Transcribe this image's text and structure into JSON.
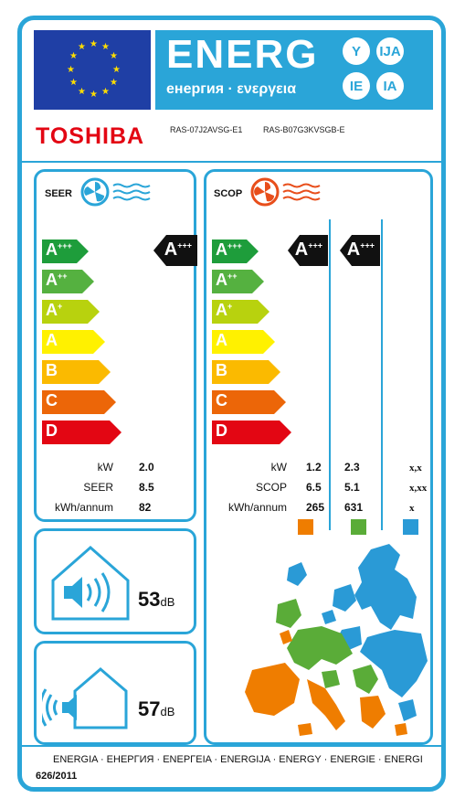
{
  "header": {
    "energ_word": "ENERG",
    "energ_subtitle": "енергия · ενεργεια",
    "lang_codes": [
      "Y",
      "IJA",
      "IE",
      "IA"
    ],
    "brand": "TOSHIBA",
    "model_indoor": "RAS-07J2AVSG-E1",
    "model_outdoor": "RAS-B07G3KVSGB-E"
  },
  "scale_classes": [
    {
      "base": "A",
      "sup": "+++",
      "color": "#1e9d3b"
    },
    {
      "base": "A",
      "sup": "++",
      "color": "#55b140"
    },
    {
      "base": "A",
      "sup": "+",
      "color": "#b8d20e"
    },
    {
      "base": "A",
      "sup": "",
      "color": "#fff100"
    },
    {
      "base": "B",
      "sup": "",
      "color": "#fbba00"
    },
    {
      "base": "C",
      "sup": "",
      "color": "#ec6608"
    },
    {
      "base": "D",
      "sup": "",
      "color": "#e30613"
    }
  ],
  "seer": {
    "title": "SEER",
    "icon": "fan-cooling-icon",
    "rating": {
      "base": "A",
      "sup": "+++"
    },
    "rows": [
      {
        "label": "kW",
        "value": "2.0"
      },
      {
        "label": "SEER",
        "value": "8.5"
      },
      {
        "label": "kWh/annum",
        "value": "82"
      }
    ]
  },
  "scop": {
    "title": "SCOP",
    "icon": "fan-heating-icon",
    "ratings": [
      {
        "base": "A",
        "sup": "+++"
      },
      {
        "base": "A",
        "sup": "+++"
      }
    ],
    "rows": [
      {
        "label": "kW",
        "values": [
          "1.2",
          "2.3",
          "x,x"
        ]
      },
      {
        "label": "SCOP",
        "values": [
          "6.5",
          "5.1",
          "x,xx"
        ]
      },
      {
        "label": "kWh/annum",
        "values": [
          "265",
          "631",
          "x"
        ]
      }
    ],
    "zone_colors": [
      "#ef7d00",
      "#5aac38",
      "#2a9ad6"
    ]
  },
  "noise": {
    "indoor": {
      "value": "53",
      "unit": "dB",
      "icon": "indoor-speaker-house-icon"
    },
    "outdoor": {
      "value": "57",
      "unit": "dB",
      "icon": "outdoor-speaker-house-icon"
    }
  },
  "footer": {
    "energy_languages": "ENERGIA · ЕНЕРГИЯ · ΕΝΕΡΓΕΙΑ · ENERGIJA · ENERGY · ENERGIE · ENERGI",
    "regulation": "626/2011"
  },
  "colors": {
    "frame": "#2aa5d8",
    "eu_blue": "#1f3fa5",
    "eu_star": "#ffdd00",
    "brand_red": "#e30613",
    "badge": "#111111"
  }
}
